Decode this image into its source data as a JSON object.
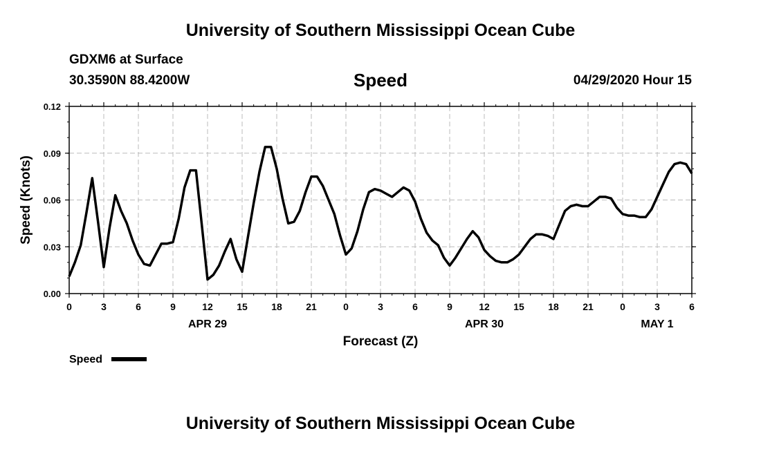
{
  "page": {
    "top_title": "University of Southern Mississippi Ocean Cube",
    "bottom_title": "University of Southern Mississippi Ocean Cube",
    "station": "GDXM6 at Surface",
    "coords": "30.3590N 88.4200W",
    "datetime": "04/29/2020 Hour 15"
  },
  "chart_data": {
    "type": "line",
    "title": "Speed",
    "xlabel": "Forecast (Z)",
    "ylabel": "Speed (Knots)",
    "ylim": [
      0,
      0.12
    ],
    "xlim": [
      0,
      54
    ],
    "grid": true,
    "yticks": [
      "0.00",
      "0.03",
      "0.06",
      "0.09",
      "0.12"
    ],
    "yticks_values": [
      0,
      0.03,
      0.06,
      0.09,
      0.12
    ],
    "xticks": [
      "0",
      "3",
      "6",
      "9",
      "12",
      "15",
      "18",
      "21",
      "0",
      "3",
      "6",
      "9",
      "12",
      "15",
      "18",
      "21",
      "0",
      "3",
      "6"
    ],
    "date_labels": [
      {
        "label": "APR 29",
        "hour": 12
      },
      {
        "label": "APR 30",
        "hour": 36
      },
      {
        "label": "MAY 1",
        "hour": 51
      }
    ],
    "legend": {
      "label": "Speed",
      "position": "bottom-left"
    },
    "series": [
      {
        "name": "Speed",
        "color": "#000000",
        "x": [
          0,
          0.5,
          1,
          1.5,
          2,
          2.5,
          3,
          3.5,
          4,
          4.5,
          5,
          5.5,
          6,
          6.5,
          7,
          7.5,
          8,
          8.5,
          9,
          9.5,
          10,
          10.5,
          11,
          11.5,
          12,
          12.5,
          13,
          13.5,
          14,
          14.5,
          15,
          15.5,
          16,
          16.5,
          17,
          17.5,
          18,
          18.5,
          19,
          19.5,
          20,
          20.5,
          21,
          21.5,
          22,
          22.5,
          23,
          23.5,
          24,
          24.5,
          25,
          25.5,
          26,
          26.5,
          27,
          27.5,
          28,
          28.5,
          29,
          29.5,
          30,
          30.5,
          31,
          31.5,
          32,
          32.5,
          33,
          33.5,
          34,
          34.5,
          35,
          35.5,
          36,
          36.5,
          37,
          37.5,
          38,
          38.5,
          39,
          39.5,
          40,
          40.5,
          41,
          41.5,
          42,
          42.5,
          43,
          43.5,
          44,
          44.5,
          45,
          45.5,
          46,
          46.5,
          47,
          47.5,
          48,
          48.5,
          49,
          49.5,
          50,
          50.5,
          51,
          51.5,
          52,
          52.5,
          53,
          53.5,
          54
        ],
        "values": [
          0.011,
          0.02,
          0.031,
          0.052,
          0.074,
          0.046,
          0.017,
          0.042,
          0.063,
          0.053,
          0.045,
          0.034,
          0.025,
          0.019,
          0.018,
          0.025,
          0.032,
          0.032,
          0.033,
          0.048,
          0.068,
          0.079,
          0.079,
          0.044,
          0.009,
          0.012,
          0.018,
          0.027,
          0.035,
          0.022,
          0.014,
          0.036,
          0.058,
          0.078,
          0.094,
          0.094,
          0.08,
          0.061,
          0.045,
          0.046,
          0.053,
          0.065,
          0.075,
          0.075,
          0.069,
          0.06,
          0.051,
          0.037,
          0.025,
          0.029,
          0.04,
          0.054,
          0.065,
          0.067,
          0.066,
          0.064,
          0.062,
          0.065,
          0.068,
          0.066,
          0.059,
          0.048,
          0.039,
          0.034,
          0.031,
          0.023,
          0.018,
          0.023,
          0.029,
          0.035,
          0.04,
          0.036,
          0.028,
          0.024,
          0.021,
          0.02,
          0.02,
          0.022,
          0.025,
          0.03,
          0.035,
          0.038,
          0.038,
          0.037,
          0.035,
          0.044,
          0.053,
          0.056,
          0.057,
          0.056,
          0.056,
          0.059,
          0.062,
          0.062,
          0.061,
          0.055,
          0.051,
          0.05,
          0.05,
          0.049,
          0.049,
          0.054,
          0.062,
          0.07,
          0.078,
          0.083,
          0.084,
          0.083,
          0.077
        ]
      }
    ]
  }
}
